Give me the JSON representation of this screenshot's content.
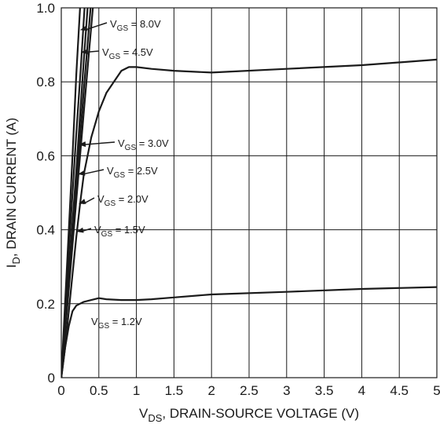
{
  "chart_data": {
    "type": "line",
    "xlabel": "V_DS, DRAIN-SOURCE VOLTAGE (V)",
    "xlabel_main": "V",
    "xlabel_sub": "DS",
    "xlabel_rest": ", DRAIN-SOURCE VOLTAGE (V)",
    "ylabel": "I_D, DRAIN CURRENT (A)",
    "ylabel_main": "I",
    "ylabel_sub": "D",
    "ylabel_rest": ", DRAIN CURRENT (A)",
    "xlim": [
      0,
      5
    ],
    "ylim": [
      0,
      1.0
    ],
    "x_ticks": [
      0,
      0.5,
      1,
      1.5,
      2,
      2.5,
      3,
      3.5,
      4,
      4.5,
      5
    ],
    "x_tick_labels": [
      "0",
      "0.5",
      "1",
      "1.5",
      "2",
      "2.5",
      "3",
      "3.5",
      "4",
      "4.5",
      "5"
    ],
    "y_ticks": [
      0,
      0.2,
      0.4,
      0.6,
      0.8,
      1.0
    ],
    "y_tick_labels": [
      "0",
      "0.2",
      "0.4",
      "0.6",
      "0.8",
      "1.0"
    ],
    "grid": true,
    "series": [
      {
        "name": "V_GS = 8.0V",
        "label_main": "V",
        "label_sub": "GS",
        "label_rest": " = 8.0V",
        "x": [
          0,
          0.05,
          0.1,
          0.15,
          0.2,
          0.25
        ],
        "y": [
          0,
          0.2,
          0.4,
          0.6,
          0.82,
          1.0
        ]
      },
      {
        "name": "V_GS = 4.5V",
        "label_main": "V",
        "label_sub": "GS",
        "label_rest": " = 4.5V",
        "x": [
          0,
          0.05,
          0.1,
          0.15,
          0.2,
          0.26,
          0.31
        ],
        "y": [
          0,
          0.17,
          0.34,
          0.5,
          0.66,
          0.84,
          1.0
        ]
      },
      {
        "name": "V_GS = 3.0V",
        "label_main": "V",
        "label_sub": "GS",
        "label_rest": " = 3.0V",
        "x": [
          0,
          0.05,
          0.1,
          0.15,
          0.2,
          0.25,
          0.3,
          0.35
        ],
        "y": [
          0,
          0.14,
          0.28,
          0.42,
          0.56,
          0.71,
          0.86,
          1.0
        ]
      },
      {
        "name": "V_GS = 2.5V",
        "label_main": "V",
        "label_sub": "GS",
        "label_rest": " = 2.5V",
        "x": [
          0,
          0.1,
          0.2,
          0.3,
          0.39
        ],
        "y": [
          0,
          0.26,
          0.52,
          0.78,
          1.0
        ]
      },
      {
        "name": "V_GS = 2.0V",
        "label_main": "V",
        "label_sub": "GS",
        "label_rest": " = 2.0V",
        "x": [
          0,
          0.1,
          0.2,
          0.3,
          0.42
        ],
        "y": [
          0,
          0.24,
          0.48,
          0.72,
          1.0
        ]
      },
      {
        "name": "V_GS = 1.5V",
        "label_main": "V",
        "label_sub": "GS",
        "label_rest": " = 1.5V",
        "x": [
          0,
          0.05,
          0.1,
          0.15,
          0.2,
          0.25,
          0.3,
          0.4,
          0.5,
          0.6,
          0.7,
          0.8,
          0.9,
          1.0,
          1.2,
          1.5,
          2.0,
          3.0,
          4.0,
          5.0
        ],
        "y": [
          0,
          0.08,
          0.18,
          0.28,
          0.38,
          0.47,
          0.55,
          0.65,
          0.72,
          0.77,
          0.8,
          0.83,
          0.84,
          0.84,
          0.835,
          0.83,
          0.825,
          0.835,
          0.845,
          0.86
        ]
      },
      {
        "name": "V_GS = 1.2V",
        "label_main": "V",
        "label_sub": "GS",
        "label_rest": " = 1.2V",
        "x": [
          0,
          0.05,
          0.1,
          0.15,
          0.2,
          0.3,
          0.4,
          0.5,
          0.6,
          0.8,
          1.0,
          1.2,
          1.5,
          2.0,
          3.0,
          4.0,
          5.0
        ],
        "y": [
          0,
          0.08,
          0.14,
          0.18,
          0.195,
          0.205,
          0.21,
          0.215,
          0.212,
          0.21,
          0.21,
          0.212,
          0.217,
          0.225,
          0.232,
          0.24,
          0.245
        ]
      }
    ],
    "annotations": [
      {
        "series": "V_GS = 8.0V",
        "target": [
          0.25,
          0.94
        ]
      },
      {
        "series": "V_GS = 4.5V",
        "target": [
          0.26,
          0.88
        ]
      },
      {
        "series": "V_GS = 3.0V",
        "target": [
          0.23,
          0.63
        ]
      },
      {
        "series": "V_GS = 2.5V",
        "target": [
          0.22,
          0.55
        ]
      },
      {
        "series": "V_GS = 2.0V",
        "target": [
          0.23,
          0.47
        ]
      },
      {
        "series": "V_GS = 1.5V",
        "target": [
          0.2,
          0.395
        ]
      },
      {
        "series": "V_GS = 1.2V",
        "target": null
      }
    ]
  }
}
